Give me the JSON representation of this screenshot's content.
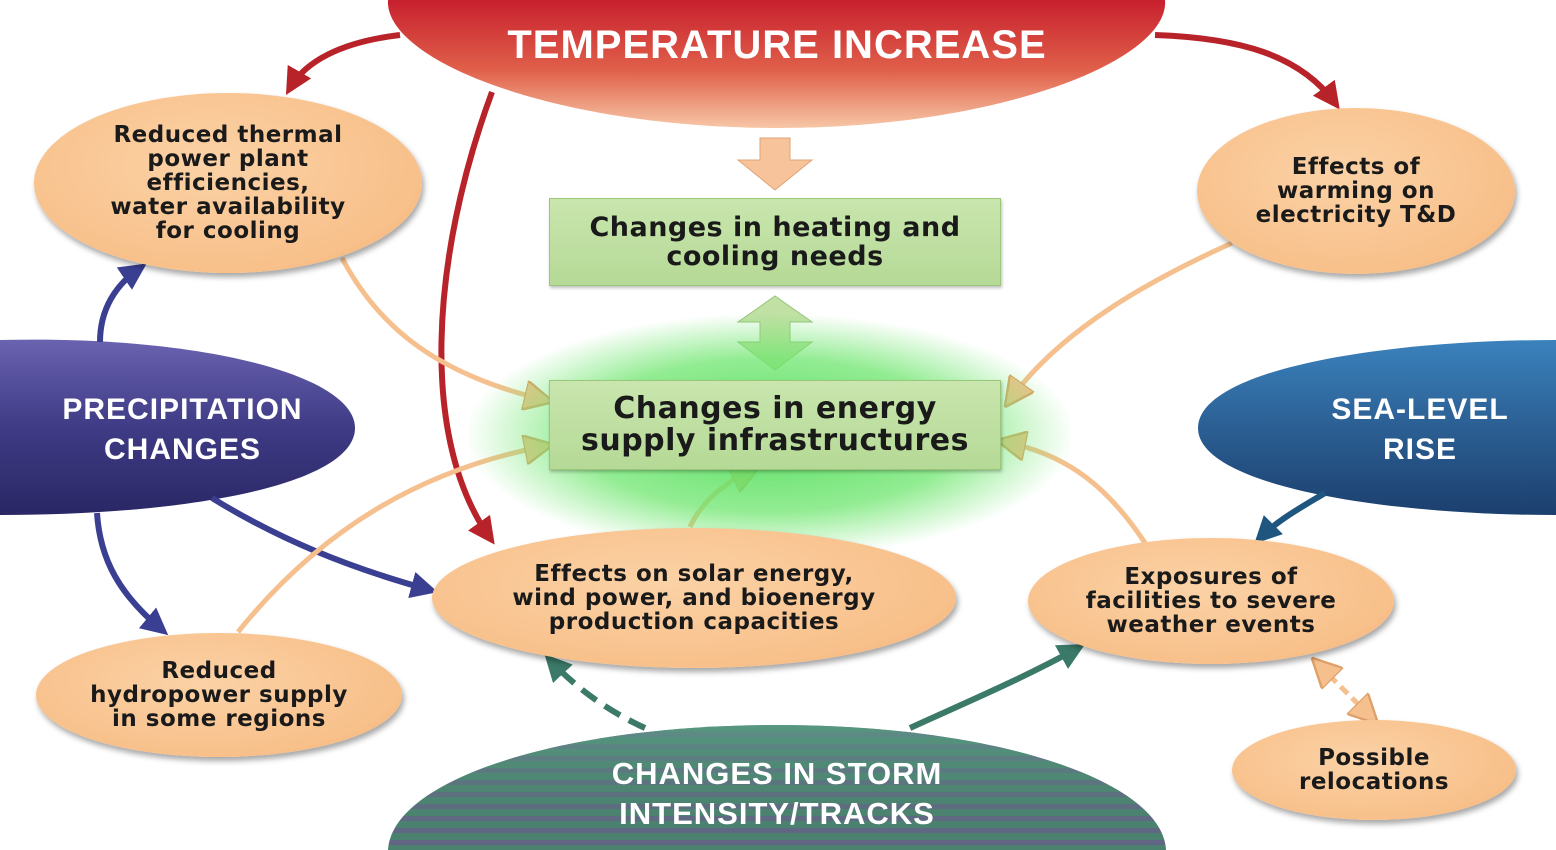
{
  "drivers": {
    "temperature": "TEMPERATURE INCREASE",
    "precipitation": "PRECIPITATION\nCHANGES",
    "sea_level": "SEA-LEVEL\nRISE",
    "storm": "CHANGES IN STORM\nINTENSITY/TRACKS"
  },
  "center": {
    "heating": "Changes in heating and\ncooling needs",
    "supply": "Changes in energy\nsupply infrastructures"
  },
  "effects": {
    "thermal": "Reduced thermal\npower plant\nefficiencies,\nwater availability\nfor cooling",
    "warming_td": "Effects of\nwarming on\nelectricity T&D",
    "solar_wind": "Effects on solar energy,\nwind power, and bioenergy\nproduction capacities",
    "exposures": "Exposures of\nfacilities to severe\nweather events",
    "hydropower": "Reduced\nhydropower supply\nin some regions",
    "relocations": "Possible\nrelocations"
  },
  "colors": {
    "temperature": "#d2453f",
    "precipitation": "#3f3b85",
    "sea_level": "#2b5f93",
    "storm": "#4d8370",
    "bubble": "#f8c08a",
    "box": "#c1e0a4",
    "glow": "#5cdc6a",
    "peach_arrow": "#f5c08e",
    "red_arrow": "#b8232a",
    "blue_arrow": "#3a3f92",
    "teal_arrow": "#3b7a68",
    "sea_arrow": "#1f567f"
  }
}
